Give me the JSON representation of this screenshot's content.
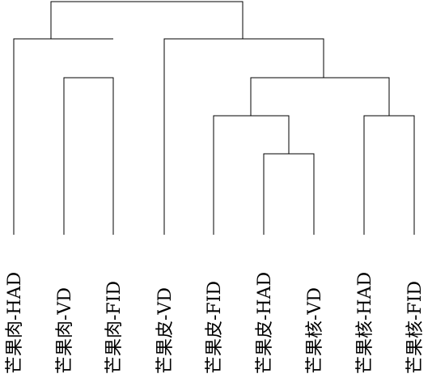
{
  "colors": {
    "line": "#000000",
    "background": "#ffffff"
  },
  "leaves": [
    {
      "label": "芒果肉-HAD"
    },
    {
      "label": "芒果肉-VD"
    },
    {
      "label": "芒果肉-FID"
    },
    {
      "label": "芒果皮-VD"
    },
    {
      "label": "芒果皮-FID"
    },
    {
      "label": "芒果皮-HAD"
    },
    {
      "label": "芒果核-VD"
    },
    {
      "label": "芒果核-HAD"
    },
    {
      "label": "芒果核-FID"
    }
  ]
}
